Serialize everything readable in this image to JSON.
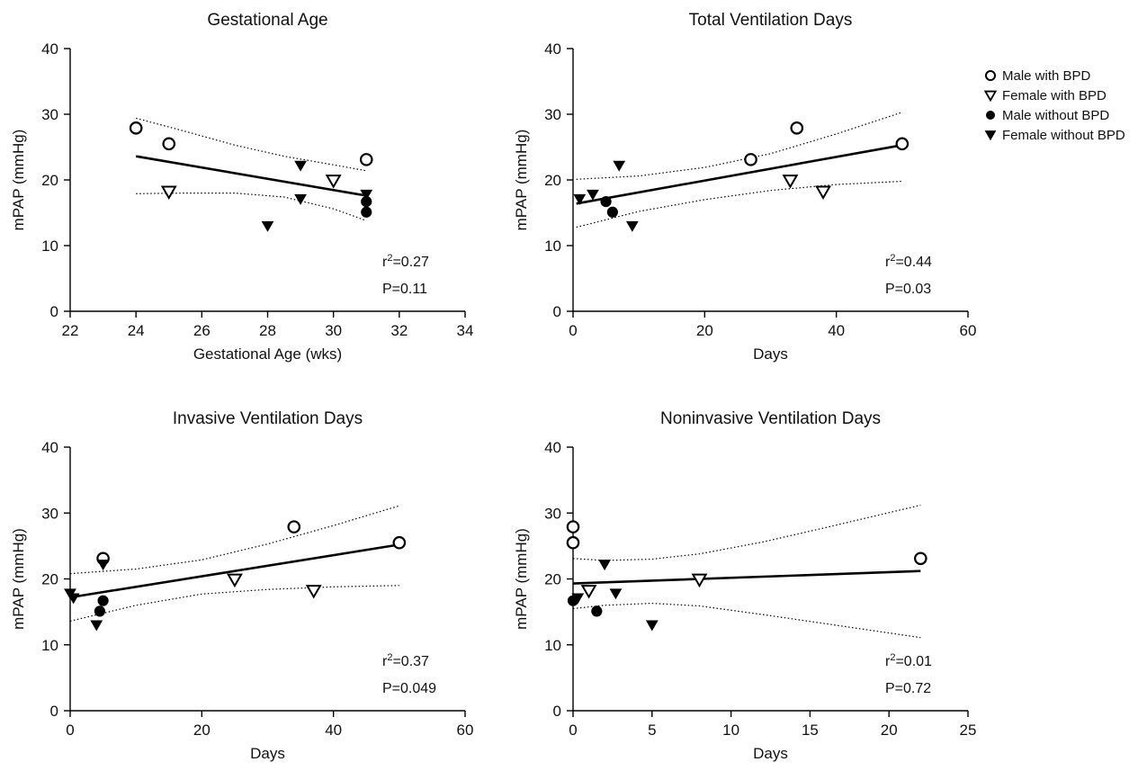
{
  "legend": [
    {
      "label": "Male with BPD",
      "marker": "open-circle"
    },
    {
      "label": "Female with BPD",
      "marker": "open-triangle-down"
    },
    {
      "label": "Male without BPD",
      "marker": "filled-circle"
    },
    {
      "label": "Female without BPD",
      "marker": "filled-triangle-down"
    }
  ],
  "chart_data": [
    {
      "type": "scatter",
      "title": "Gestational Age",
      "xlabel": "Gestational Age (wks)",
      "ylabel": "mPAP  (mmHg)",
      "xlim": [
        22,
        34
      ],
      "ylim": [
        0,
        40
      ],
      "xticks": [
        "22",
        "24",
        "26",
        "28",
        "30",
        "32",
        "34"
      ],
      "yticks": [
        "0",
        "10",
        "20",
        "30",
        "40"
      ],
      "stat_r2_prefix": "r",
      "stat_r2_sup": "2",
      "stat_r2_value": "=0.27",
      "stat_p": "P=0.11",
      "fit_line": [
        [
          24,
          23.6
        ],
        [
          31,
          17.6
        ]
      ],
      "ci_upper": [
        [
          24,
          29.4
        ],
        [
          25.5,
          27.4
        ],
        [
          27,
          25.3
        ],
        [
          28.5,
          23.6
        ],
        [
          30,
          22.3
        ],
        [
          31,
          21.4
        ]
      ],
      "ci_lower": [
        [
          24,
          17.9
        ],
        [
          25.5,
          18.0
        ],
        [
          27,
          18.0
        ],
        [
          28.5,
          17.4
        ],
        [
          30,
          15.6
        ],
        [
          31,
          13.8
        ]
      ],
      "series": [
        {
          "name": "Male with BPD",
          "marker": "open-circle",
          "points": [
            [
              24,
              27.9
            ],
            [
              25,
              25.5
            ],
            [
              31,
              23.1
            ]
          ]
        },
        {
          "name": "Female with BPD",
          "marker": "open-triangle-down",
          "points": [
            [
              25,
              18.2
            ],
            [
              30,
              19.9
            ]
          ]
        },
        {
          "name": "Male without BPD",
          "marker": "filled-circle",
          "points": [
            [
              31,
              16.7
            ],
            [
              31,
              15.1
            ]
          ]
        },
        {
          "name": "Female without BPD",
          "marker": "filled-triangle-down",
          "points": [
            [
              28,
              13.0
            ],
            [
              29,
              22.2
            ],
            [
              29,
              17.1
            ],
            [
              31,
              17.8
            ]
          ]
        }
      ]
    },
    {
      "type": "scatter",
      "title": "Total Ventilation Days",
      "xlabel": "Days",
      "ylabel": "mPAP  (mmHg)",
      "xlim": [
        0,
        60
      ],
      "ylim": [
        0,
        40
      ],
      "xticks": [
        "0",
        "20",
        "40",
        "60"
      ],
      "yticks": [
        "0",
        "10",
        "20",
        "30",
        "40"
      ],
      "stat_r2_prefix": "r",
      "stat_r2_sup": "2",
      "stat_r2_value": "=0.44",
      "stat_p": "P=0.03",
      "fit_line": [
        [
          0.5,
          16.4
        ],
        [
          50,
          25.3
        ]
      ],
      "ci_upper": [
        [
          0.5,
          20.1
        ],
        [
          10,
          20.6
        ],
        [
          20,
          21.9
        ],
        [
          30,
          24.0
        ],
        [
          40,
          27.0
        ],
        [
          50,
          30.3
        ]
      ],
      "ci_lower": [
        [
          0.5,
          12.8
        ],
        [
          10,
          15.2
        ],
        [
          20,
          17.0
        ],
        [
          30,
          18.4
        ],
        [
          40,
          19.3
        ],
        [
          50,
          19.8
        ]
      ],
      "series": [
        {
          "name": "Male with BPD",
          "marker": "open-circle",
          "points": [
            [
              27,
              23.1
            ],
            [
              34,
              27.9
            ],
            [
              50,
              25.5
            ]
          ]
        },
        {
          "name": "Female with BPD",
          "marker": "open-triangle-down",
          "points": [
            [
              33,
              19.9
            ],
            [
              38,
              18.2
            ]
          ]
        },
        {
          "name": "Male without BPD",
          "marker": "filled-circle",
          "points": [
            [
              5,
              16.7
            ],
            [
              6,
              15.1
            ]
          ]
        },
        {
          "name": "Female without BPD",
          "marker": "filled-triangle-down",
          "points": [
            [
              1,
              17.1
            ],
            [
              3,
              17.8
            ],
            [
              7,
              22.2
            ],
            [
              9,
              13.0
            ]
          ]
        }
      ]
    },
    {
      "type": "scatter",
      "title": "Invasive Ventilation Days",
      "xlabel": "Days",
      "ylabel": "mPAP (mmHg)",
      "xlim": [
        0,
        60
      ],
      "ylim": [
        0,
        40
      ],
      "xticks": [
        "0",
        "20",
        "40",
        "60"
      ],
      "yticks": [
        "0",
        "10",
        "20",
        "30",
        "40"
      ],
      "stat_r2_prefix": "r",
      "stat_r2_sup": "2",
      "stat_r2_value": "=0.37",
      "stat_p": "P=0.049",
      "fit_line": [
        [
          0,
          17.2
        ],
        [
          50,
          25.2
        ]
      ],
      "ci_upper": [
        [
          0,
          20.8
        ],
        [
          10,
          21.5
        ],
        [
          20,
          22.9
        ],
        [
          30,
          25.3
        ],
        [
          40,
          28.1
        ],
        [
          50,
          31.1
        ]
      ],
      "ci_lower": [
        [
          0,
          13.6
        ],
        [
          10,
          16.0
        ],
        [
          20,
          17.7
        ],
        [
          30,
          18.4
        ],
        [
          40,
          18.8
        ],
        [
          50,
          19.0
        ]
      ],
      "series": [
        {
          "name": "Male with BPD",
          "marker": "open-circle",
          "points": [
            [
              5,
              23.1
            ],
            [
              34,
              27.9
            ],
            [
              50,
              25.5
            ]
          ]
        },
        {
          "name": "Female with BPD",
          "marker": "open-triangle-down",
          "points": [
            [
              25,
              19.9
            ],
            [
              37,
              18.2
            ]
          ]
        },
        {
          "name": "Male without BPD",
          "marker": "filled-circle",
          "points": [
            [
              4.5,
              15.1
            ],
            [
              5,
              16.7
            ]
          ]
        },
        {
          "name": "Female without BPD",
          "marker": "filled-triangle-down",
          "points": [
            [
              0,
              17.8
            ],
            [
              0.5,
              17.1
            ],
            [
              4,
              13.0
            ],
            [
              5,
              22.2
            ]
          ]
        }
      ]
    },
    {
      "type": "scatter",
      "title": "Noninvasive Ventilation Days",
      "xlabel": "Days",
      "ylabel": "mPAP (mmHg)",
      "xlim": [
        0,
        25
      ],
      "ylim": [
        0,
        40
      ],
      "xticks": [
        "0",
        "5",
        "10",
        "15",
        "20",
        "25"
      ],
      "yticks": [
        "0",
        "10",
        "20",
        "30",
        "40"
      ],
      "stat_r2_prefix": "r",
      "stat_r2_sup": "2",
      "stat_r2_value": "=0.01",
      "stat_p": "P=0.72",
      "fit_line": [
        [
          0,
          19.3
        ],
        [
          22,
          21.2
        ]
      ],
      "ci_upper": [
        [
          0,
          23.1
        ],
        [
          2,
          22.8
        ],
        [
          5,
          23.0
        ],
        [
          8,
          23.8
        ],
        [
          12,
          25.6
        ],
        [
          16,
          27.8
        ],
        [
          22,
          31.2
        ]
      ],
      "ci_lower": [
        [
          0,
          15.5
        ],
        [
          2,
          16.0
        ],
        [
          5,
          16.3
        ],
        [
          8,
          15.9
        ],
        [
          12,
          14.6
        ],
        [
          16,
          13.2
        ],
        [
          22,
          11.1
        ]
      ],
      "series": [
        {
          "name": "Male with BPD",
          "marker": "open-circle",
          "points": [
            [
              0,
              27.9
            ],
            [
              0,
              25.5
            ],
            [
              22,
              23.1
            ]
          ]
        },
        {
          "name": "Female with BPD",
          "marker": "open-triangle-down",
          "points": [
            [
              1,
              18.2
            ],
            [
              8,
              19.9
            ]
          ]
        },
        {
          "name": "Male without BPD",
          "marker": "filled-circle",
          "points": [
            [
              0,
              16.7
            ],
            [
              1.5,
              15.1
            ]
          ]
        },
        {
          "name": "Female without BPD",
          "marker": "filled-triangle-down",
          "points": [
            [
              0.3,
              17.1
            ],
            [
              2,
              22.2
            ],
            [
              2.7,
              17.8
            ],
            [
              5,
              13.0
            ]
          ]
        }
      ]
    }
  ]
}
